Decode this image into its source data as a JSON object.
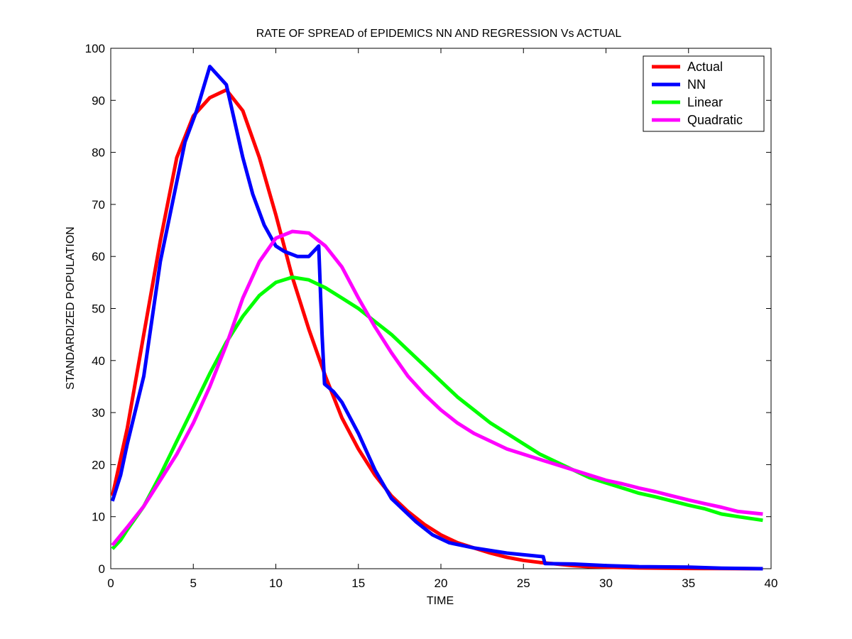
{
  "chart_data": {
    "type": "line",
    "title": "RATE OF SPREAD of EPIDEMICS NN AND REGRESSION Vs ACTUAL",
    "xlabel": "TIME",
    "ylabel": "STANDARDIZED POPULATION",
    "xlim": [
      0,
      40
    ],
    "ylim": [
      0,
      100
    ],
    "xticks": [
      0,
      5,
      10,
      15,
      20,
      25,
      30,
      35,
      40
    ],
    "yticks": [
      0,
      10,
      20,
      30,
      40,
      50,
      60,
      70,
      80,
      90,
      100
    ],
    "xtick_labels": [
      "0",
      "5",
      "10",
      "15",
      "20",
      "25",
      "30",
      "35",
      "40"
    ],
    "ytick_labels": [
      "0",
      "10",
      "20",
      "30",
      "40",
      "50",
      "60",
      "70",
      "80",
      "90",
      "100"
    ],
    "legend_position": "top-right",
    "series": [
      {
        "name": "Actual",
        "color": "#ff0000",
        "points": [
          [
            0.1,
            14
          ],
          [
            1,
            27
          ],
          [
            2,
            45
          ],
          [
            3,
            63
          ],
          [
            4,
            79
          ],
          [
            5,
            87
          ],
          [
            6,
            90.5
          ],
          [
            7,
            92
          ],
          [
            8,
            88
          ],
          [
            9,
            79
          ],
          [
            10,
            68
          ],
          [
            11,
            56
          ],
          [
            12,
            46
          ],
          [
            13,
            37
          ],
          [
            14,
            29
          ],
          [
            15,
            23
          ],
          [
            16,
            18
          ],
          [
            17,
            14
          ],
          [
            18,
            11
          ],
          [
            19,
            8.5
          ],
          [
            20,
            6.5
          ],
          [
            21,
            5
          ],
          [
            22,
            4
          ],
          [
            23,
            3
          ],
          [
            24,
            2.2
          ],
          [
            25,
            1.6
          ],
          [
            26,
            1.2
          ],
          [
            27,
            0.9
          ],
          [
            28,
            0.6
          ],
          [
            29,
            0.4
          ],
          [
            30,
            0.3
          ],
          [
            32,
            0.15
          ],
          [
            35,
            0.05
          ],
          [
            39.5,
            0
          ]
        ]
      },
      {
        "name": "NN",
        "color": "#0000ff",
        "points": [
          [
            0.1,
            13
          ],
          [
            0.6,
            18
          ],
          [
            1,
            24
          ],
          [
            2,
            37
          ],
          [
            3,
            59
          ],
          [
            4.5,
            82
          ],
          [
            5.2,
            88
          ],
          [
            6,
            96.5
          ],
          [
            7,
            93
          ],
          [
            8,
            79
          ],
          [
            8.6,
            72
          ],
          [
            9.3,
            66
          ],
          [
            10,
            62
          ],
          [
            10.5,
            61
          ],
          [
            11.3,
            60
          ],
          [
            12,
            60
          ],
          [
            12.6,
            62
          ],
          [
            12.8,
            45
          ],
          [
            12.95,
            35.5
          ],
          [
            13.5,
            34
          ],
          [
            14,
            32
          ],
          [
            15,
            26
          ],
          [
            16,
            19
          ],
          [
            17,
            13.5
          ],
          [
            18.5,
            9
          ],
          [
            19.5,
            6.5
          ],
          [
            20.5,
            5
          ],
          [
            22,
            4
          ],
          [
            24,
            3
          ],
          [
            26.2,
            2.3
          ],
          [
            26.3,
            1
          ],
          [
            28,
            0.9
          ],
          [
            30,
            0.6
          ],
          [
            32,
            0.4
          ],
          [
            35,
            0.3
          ],
          [
            37,
            0.1
          ],
          [
            39.5,
            0
          ]
        ]
      },
      {
        "name": "Linear",
        "color": "#00ff00",
        "points": [
          [
            0.1,
            3.8
          ],
          [
            0.6,
            5.5
          ],
          [
            1,
            7.5
          ],
          [
            2,
            12
          ],
          [
            3,
            18
          ],
          [
            4,
            24.5
          ],
          [
            5,
            31
          ],
          [
            6,
            37.5
          ],
          [
            7,
            43.5
          ],
          [
            8,
            48.5
          ],
          [
            9,
            52.5
          ],
          [
            10,
            55
          ],
          [
            11,
            56
          ],
          [
            12,
            55.5
          ],
          [
            13,
            54
          ],
          [
            14,
            52
          ],
          [
            15,
            50
          ],
          [
            16,
            47.5
          ],
          [
            17,
            45
          ],
          [
            18,
            42
          ],
          [
            19,
            39
          ],
          [
            20,
            36
          ],
          [
            21,
            33
          ],
          [
            22,
            30.5
          ],
          [
            23,
            28
          ],
          [
            24,
            26
          ],
          [
            25,
            24
          ],
          [
            26,
            22
          ],
          [
            27,
            20.5
          ],
          [
            28,
            19
          ],
          [
            29,
            17.5
          ],
          [
            30,
            16.5
          ],
          [
            31,
            15.5
          ],
          [
            32,
            14.5
          ],
          [
            33,
            13.8
          ],
          [
            34,
            13
          ],
          [
            35,
            12.2
          ],
          [
            36,
            11.5
          ],
          [
            37,
            10.5
          ],
          [
            38,
            10
          ],
          [
            39.5,
            9.3
          ]
        ]
      },
      {
        "name": "Quadratic",
        "color": "#ff00ff",
        "points": [
          [
            0.1,
            4.5
          ],
          [
            1,
            8
          ],
          [
            2,
            12
          ],
          [
            3,
            17
          ],
          [
            4,
            22
          ],
          [
            5,
            28
          ],
          [
            6,
            35
          ],
          [
            7,
            43
          ],
          [
            8,
            52
          ],
          [
            9,
            59
          ],
          [
            10,
            63.5
          ],
          [
            11,
            64.8
          ],
          [
            12,
            64.5
          ],
          [
            13,
            62
          ],
          [
            14,
            58
          ],
          [
            15,
            52
          ],
          [
            16,
            46.5
          ],
          [
            17,
            41.5
          ],
          [
            18,
            37
          ],
          [
            19,
            33.5
          ],
          [
            20,
            30.5
          ],
          [
            21,
            28
          ],
          [
            22,
            26
          ],
          [
            23,
            24.5
          ],
          [
            24,
            23
          ],
          [
            25,
            22
          ],
          [
            26,
            21
          ],
          [
            27,
            20
          ],
          [
            28,
            19
          ],
          [
            29,
            18
          ],
          [
            30,
            17
          ],
          [
            31,
            16.3
          ],
          [
            32,
            15.5
          ],
          [
            33,
            14.8
          ],
          [
            34,
            14
          ],
          [
            35,
            13.2
          ],
          [
            36,
            12.5
          ],
          [
            37,
            11.8
          ],
          [
            38,
            11
          ],
          [
            39.5,
            10.5
          ]
        ]
      }
    ]
  }
}
